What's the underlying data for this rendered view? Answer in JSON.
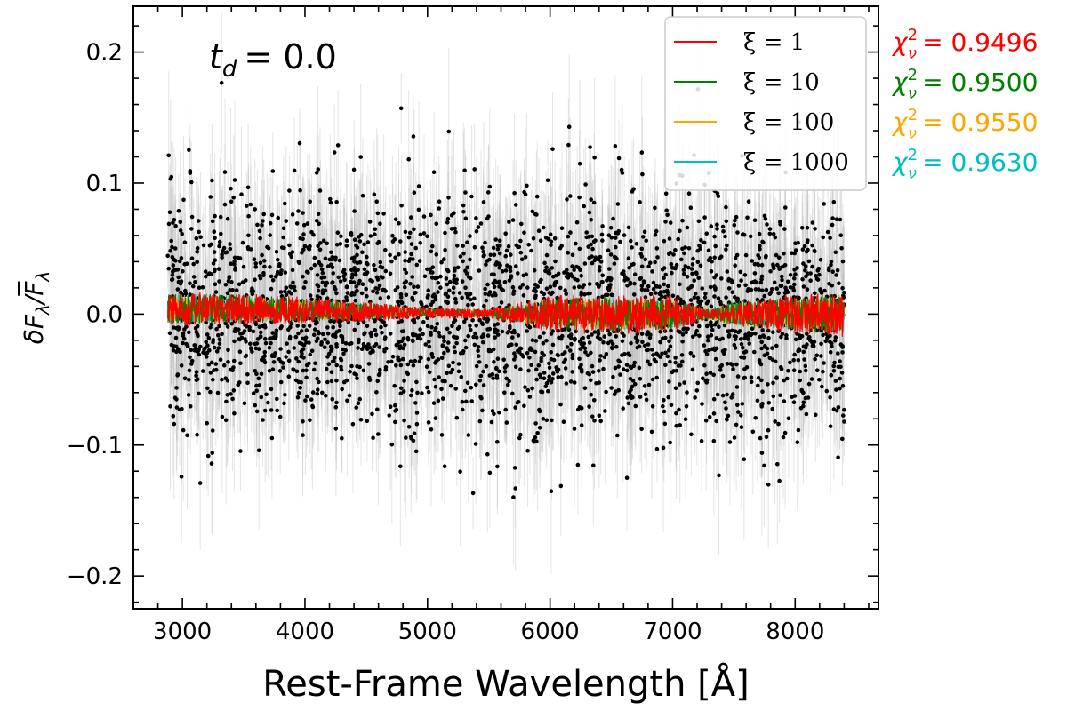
{
  "chart_data": {
    "type": "scatter",
    "xlabel": "Rest-Frame Wavelength [Å]",
    "ylabel": "δF_λ / F̄_λ",
    "xlim": [
      2600,
      8680
    ],
    "ylim": [
      -0.225,
      0.235
    ],
    "xticks": [
      3000,
      4000,
      5000,
      6000,
      7000,
      8000
    ],
    "xtick_labels": [
      "3000",
      "4000",
      "5000",
      "6000",
      "7000",
      "8000"
    ],
    "yticks": [
      -0.2,
      -0.1,
      0.0,
      0.1,
      0.2
    ],
    "ytick_labels": [
      "−0.2",
      "−0.1",
      "0.0",
      "0.1",
      "0.2"
    ],
    "annotation": {
      "symbol": "t",
      "subscript": "d",
      "value_text": "=  0.0"
    },
    "data_range": [
      2880,
      8400
    ],
    "data_scatter_std": 0.045,
    "data_colors": {
      "points": "#000000",
      "errorbars": "#b4b4b4"
    },
    "series": [
      {
        "name": "ξ = 1",
        "color": "#ff0000",
        "chi2": "0.9496",
        "envelope": [
          [
            2900,
            0.013
          ],
          [
            3500,
            0.012
          ],
          [
            4500,
            0.008
          ],
          [
            5000,
            0.004
          ],
          [
            5500,
            0.004
          ],
          [
            6000,
            0.014
          ],
          [
            6500,
            0.016
          ],
          [
            7000,
            0.014
          ],
          [
            7300,
            0.003
          ],
          [
            7600,
            0.01
          ],
          [
            8000,
            0.015
          ],
          [
            8400,
            0.018
          ]
        ]
      },
      {
        "name": "ξ = 10",
        "color": "#008000",
        "chi2": "0.9500",
        "envelope": [
          [
            2900,
            0.012
          ],
          [
            3500,
            0.011
          ],
          [
            4500,
            0.007
          ],
          [
            5000,
            0.003
          ],
          [
            5500,
            0.003
          ],
          [
            6000,
            0.012
          ],
          [
            6500,
            0.014
          ],
          [
            7000,
            0.012
          ],
          [
            7300,
            0.004
          ],
          [
            7500,
            0.01
          ],
          [
            8000,
            0.013
          ],
          [
            8400,
            0.016
          ]
        ]
      },
      {
        "name": "ξ = 100",
        "color": "#ffa500",
        "chi2": "0.9550",
        "envelope": [
          [
            2900,
            0.011
          ],
          [
            3500,
            0.01
          ],
          [
            4500,
            0.006
          ],
          [
            5000,
            0.003
          ],
          [
            5500,
            0.003
          ],
          [
            6000,
            0.011
          ],
          [
            6500,
            0.013
          ],
          [
            7000,
            0.011
          ],
          [
            7300,
            0.004
          ],
          [
            7500,
            0.009
          ],
          [
            8000,
            0.012
          ],
          [
            8400,
            0.015
          ]
        ]
      },
      {
        "name": "ξ = 1000",
        "color": "#00bfbf",
        "chi2": "0.9630",
        "envelope": [
          [
            2900,
            0.012
          ],
          [
            3500,
            0.01
          ],
          [
            4500,
            0.006
          ],
          [
            5000,
            0.003
          ],
          [
            5500,
            0.003
          ],
          [
            6000,
            0.011
          ],
          [
            6500,
            0.013
          ],
          [
            7000,
            0.011
          ],
          [
            7300,
            0.004
          ],
          [
            7500,
            0.009
          ],
          [
            8000,
            0.012
          ],
          [
            8400,
            0.015
          ]
        ]
      }
    ],
    "chi2_symbol": "χ",
    "chi2_sub": "ν",
    "chi2_sup": "2",
    "legend": "upper right"
  }
}
